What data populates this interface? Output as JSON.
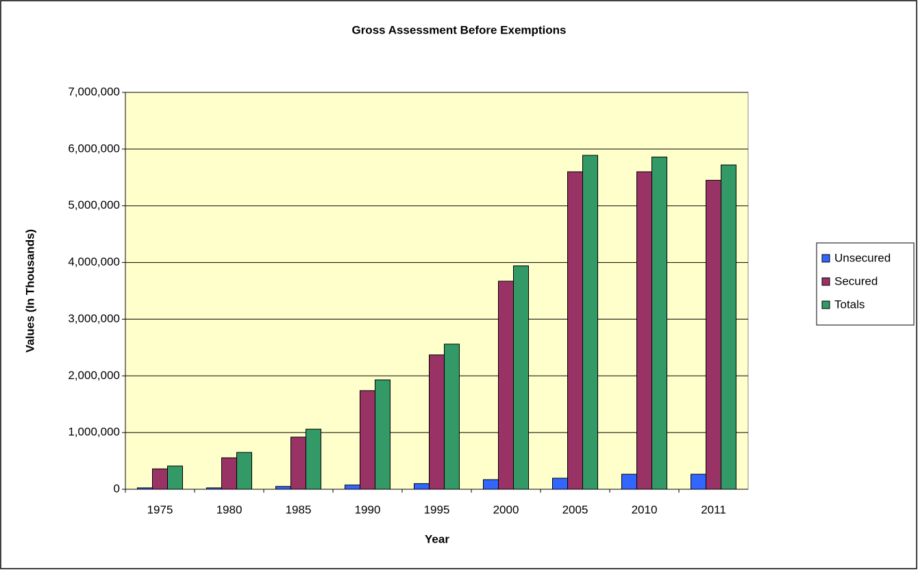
{
  "chart_data": {
    "type": "bar",
    "title": "Gross Assessment Before Exemptions",
    "x_label": "Year",
    "y_label": "Values (In Thousands)",
    "categories": [
      "1975",
      "1980",
      "1985",
      "1990",
      "1995",
      "2000",
      "2005",
      "2010",
      "2011"
    ],
    "series": [
      {
        "name": "Unsecured",
        "color": "#3366ff",
        "values": [
          25000,
          25000,
          50000,
          75000,
          100000,
          170000,
          195000,
          265000,
          265000
        ]
      },
      {
        "name": "Secured",
        "color": "#993366",
        "values": [
          360000,
          555000,
          920000,
          1740000,
          2370000,
          3670000,
          5600000,
          5600000,
          5450000
        ]
      },
      {
        "name": "Totals",
        "color": "#339966",
        "values": [
          410000,
          650000,
          1060000,
          1930000,
          2560000,
          3940000,
          5890000,
          5860000,
          5720000
        ]
      }
    ],
    "ylim": [
      0,
      7000000
    ],
    "yticks": [
      0,
      {
        "value": 1000000,
        "label": "1,000,000"
      },
      {
        "value": 2000000,
        "label": "2,000,000"
      },
      {
        "value": 3000000,
        "label": "3,000,000"
      },
      {
        "value": 4000000,
        "label": "4,000,000"
      },
      {
        "value": 5000000,
        "label": "5,000,000"
      },
      {
        "value": 6000000,
        "label": "6,000,000"
      },
      {
        "value": 7000000,
        "label": "7,000,000"
      }
    ],
    "grid": true,
    "legend": "right"
  }
}
